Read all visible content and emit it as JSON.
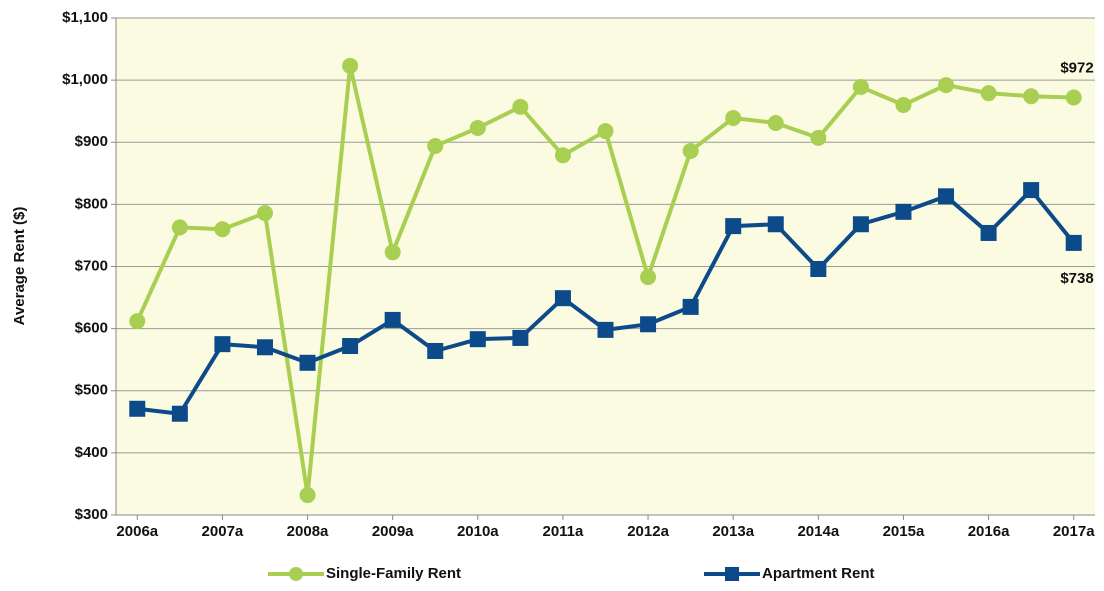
{
  "chart_data": {
    "type": "line",
    "y_label": "Average Rent ($)",
    "categories": [
      "2006a",
      null,
      "2007a",
      null,
      "2008a",
      null,
      "2009a",
      null,
      "2010a",
      null,
      "2011a",
      null,
      "2012a",
      null,
      "2013a",
      null,
      "2014a",
      null,
      "2015a",
      null,
      "2016a",
      null,
      "2017a"
    ],
    "series": [
      {
        "name": "Single-Family Rent",
        "color": "#a8cf52",
        "marker": "circle",
        "values": [
          612,
          763,
          760,
          786,
          332,
          1023,
          723,
          894,
          923,
          957,
          879,
          918,
          683,
          886,
          939,
          931,
          907,
          989,
          960,
          992,
          979,
          974,
          972
        ],
        "value_labels": [
          null,
          null,
          null,
          null,
          null,
          null,
          null,
          null,
          null,
          null,
          null,
          null,
          null,
          null,
          null,
          null,
          null,
          null,
          null,
          null,
          null,
          null,
          "$972"
        ]
      },
      {
        "name": "Apartment Rent",
        "color": "#0d4a8a",
        "marker": "square",
        "values": [
          471,
          463,
          575,
          570,
          545,
          572,
          614,
          564,
          583,
          585,
          649,
          598,
          607,
          635,
          765,
          768,
          696,
          768,
          788,
          813,
          754,
          823,
          738
        ],
        "value_labels": [
          null,
          null,
          null,
          null,
          null,
          null,
          null,
          null,
          null,
          null,
          null,
          null,
          null,
          null,
          null,
          null,
          null,
          null,
          null,
          null,
          null,
          null,
          "$738"
        ]
      }
    ],
    "ylim": [
      300,
      1100
    ],
    "yticks": [
      {
        "value": 300,
        "label": "$300"
      },
      {
        "value": 400,
        "label": "$400"
      },
      {
        "value": 500,
        "label": "$500"
      },
      {
        "value": 600,
        "label": "$600"
      },
      {
        "value": 700,
        "label": "$700"
      },
      {
        "value": 800,
        "label": "$800"
      },
      {
        "value": 900,
        "label": "$900"
      },
      {
        "value": 1000,
        "label": "$1,000"
      },
      {
        "value": 1100,
        "label": "$1,100"
      }
    ],
    "grid": true,
    "legend": "bottom",
    "background": "#fbfbe1"
  }
}
